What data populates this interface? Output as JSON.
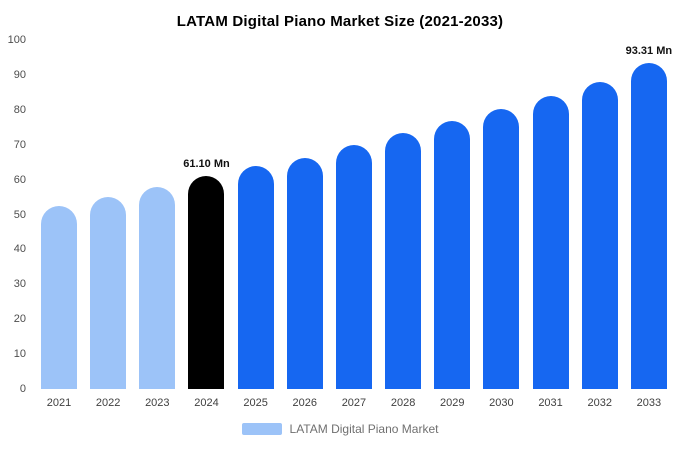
{
  "title": "LATAM Digital Piano Market Size (2021-2033)",
  "legend": {
    "label": "LATAM Digital Piano Market",
    "swatch_color": "#9cc3f8"
  },
  "colors": {
    "historical": "#9cc3f8",
    "current": "#000000",
    "forecast": "#1667f1"
  },
  "chart_data": {
    "type": "bar",
    "title": "LATAM Digital Piano Market Size (2021-2033)",
    "unit": "Mn",
    "categories": [
      "2021",
      "2022",
      "2023",
      "2024",
      "2025",
      "2026",
      "2027",
      "2028",
      "2029",
      "2030",
      "2031",
      "2032",
      "2033"
    ],
    "values": [
      52.5,
      55.0,
      58.0,
      61.1,
      63.8,
      66.3,
      69.8,
      73.3,
      76.8,
      80.3,
      84.0,
      88.0,
      93.31
    ],
    "bar_styles": [
      "historical",
      "historical",
      "historical",
      "current",
      "forecast",
      "forecast",
      "forecast",
      "forecast",
      "forecast",
      "forecast",
      "forecast",
      "forecast",
      "forecast"
    ],
    "annotations": [
      {
        "index": 3,
        "text": "61.10 Mn"
      },
      {
        "index": 12,
        "text": "93.31 Mn"
      }
    ],
    "ylim": [
      0,
      100
    ],
    "yticks": [
      0,
      10,
      20,
      30,
      40,
      50,
      60,
      70,
      80,
      90,
      100
    ],
    "xlabel": "",
    "ylabel": "",
    "grid": false,
    "legend_position": "bottom"
  }
}
